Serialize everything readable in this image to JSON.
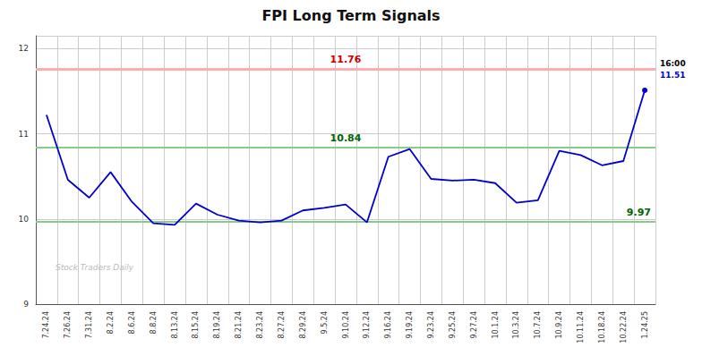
{
  "chart_data": {
    "type": "line",
    "title": "FPI Long Term Signals",
    "categories": [
      "7.24.24",
      "7.26.24",
      "7.31.24",
      "8.2.24",
      "8.6.24",
      "8.8.24",
      "8.13.24",
      "8.15.24",
      "8.19.24",
      "8.21.24",
      "8.23.24",
      "8.27.24",
      "8.29.24",
      "9.5.24",
      "9.10.24",
      "9.12.24",
      "9.16.24",
      "9.19.24",
      "9.23.24",
      "9.25.24",
      "9.27.24",
      "10.1.24",
      "10.3.24",
      "10.7.24",
      "10.9.24",
      "10.11.24",
      "10.18.24",
      "10.22.24",
      "1.24.25"
    ],
    "values": [
      11.22,
      10.46,
      10.25,
      10.55,
      10.2,
      9.95,
      9.93,
      10.18,
      10.05,
      9.98,
      9.96,
      9.98,
      10.1,
      10.13,
      10.17,
      9.96,
      10.73,
      10.82,
      10.47,
      10.45,
      10.46,
      10.42,
      10.19,
      10.22,
      10.8,
      10.75,
      10.63,
      10.68,
      11.51
    ],
    "color": "#0000cc",
    "ylim": [
      9.0,
      12.15
    ],
    "yticks": [
      9,
      10,
      11,
      12
    ],
    "grid": true,
    "reference_lines": [
      {
        "y": 11.76,
        "label": "11.76",
        "color": "#ffaaaa",
        "label_color": "#cc0000"
      },
      {
        "y": 10.84,
        "label": "10.84",
        "color": "#88cc88",
        "label_color": "#006600"
      },
      {
        "y": 9.97,
        "label": "9.97",
        "color": "#88cc88",
        "label_color": "#006600"
      }
    ],
    "annotations": [
      {
        "text": "16:00",
        "color": "#000000"
      },
      {
        "text": "11.51",
        "color": "#0000cc"
      },
      {
        "text": "Stock Traders Daily",
        "color": "#bbbbbb"
      }
    ]
  }
}
